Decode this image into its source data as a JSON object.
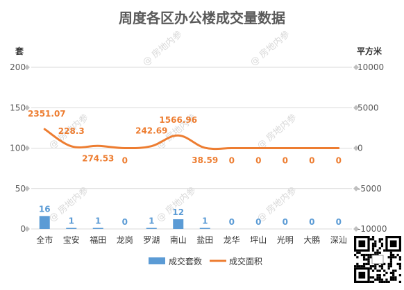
{
  "chart_data": {
    "type": "bar+line",
    "title": "周度各区办公楼成交量数据",
    "categories": [
      "全市",
      "宝安",
      "福田",
      "龙岗",
      "罗湖",
      "南山",
      "盐田",
      "龙华",
      "坪山",
      "光明",
      "大鹏",
      "深汕"
    ],
    "series": [
      {
        "name": "成交套数",
        "type": "bar",
        "axis": "left",
        "color": "#5b9bd5",
        "values": [
          16,
          1,
          1,
          0,
          1,
          12,
          1,
          0,
          0,
          0,
          0,
          0
        ],
        "labels": [
          "16",
          "1",
          "1",
          "0",
          "1",
          "12",
          "1",
          "0",
          "0",
          "0",
          "0",
          "0"
        ]
      },
      {
        "name": "成交面积",
        "type": "line",
        "axis": "right",
        "color": "#ed7d31",
        "values": [
          2351.07,
          228.3,
          274.53,
          0,
          242.69,
          1566.96,
          38.59,
          0,
          0,
          0,
          0,
          0
        ],
        "labels": [
          "2351.07",
          "228.3",
          "274.53",
          "0",
          "242.69",
          "1566.96",
          "38.59",
          "0",
          "0",
          "0",
          "0",
          "0"
        ]
      }
    ],
    "y_left": {
      "unit": "套",
      "ticks": [
        "200",
        "150",
        "100",
        "50",
        "0"
      ],
      "range": [
        0,
        200
      ]
    },
    "y_right": {
      "unit": "平方米",
      "ticks": [
        "10000",
        "5000",
        "0",
        "-5000",
        "-10000"
      ],
      "range": [
        -10000,
        10000
      ]
    },
    "grid": true,
    "legend_position": "bottom"
  },
  "watermark": "@ 房地内参",
  "qr_icon": "qr-code-icon"
}
